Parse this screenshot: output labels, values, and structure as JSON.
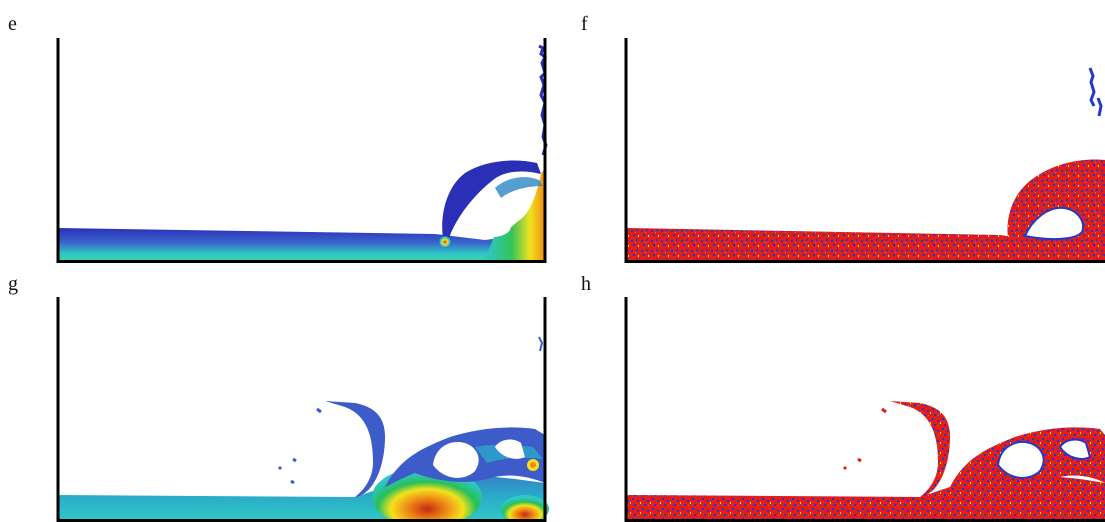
{
  "figure": {
    "panels": [
      {
        "label": "e",
        "colormap": "velocity-jet"
      },
      {
        "label": "f",
        "colormap": "particle-red-blue"
      },
      {
        "label": "g",
        "colormap": "velocity-jet"
      },
      {
        "label": "h",
        "colormap": "particle-red-blue"
      }
    ]
  },
  "colors": {
    "water_dark": "#2b2fb8",
    "water_mid": "#3d5cc9",
    "cyan": "#22c8c8",
    "green": "#28c05a",
    "yellow": "#f2e21c",
    "orange": "#f08a16",
    "red": "#e31c1c",
    "blue_particle": "#2438c8"
  }
}
